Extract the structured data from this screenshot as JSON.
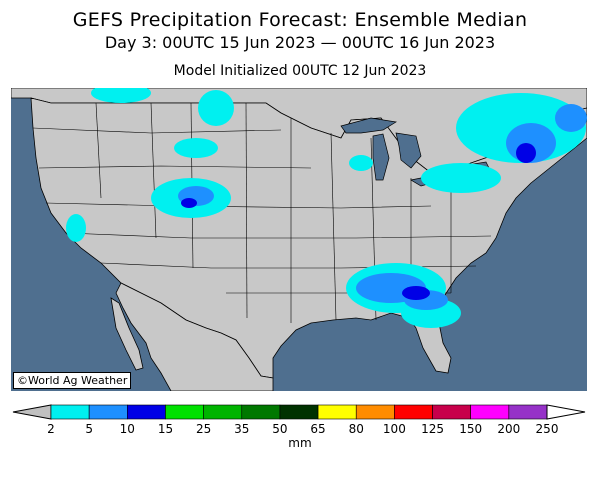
{
  "header": {
    "title": "GEFS Precipitation Forecast: Ensemble Median",
    "subtitle": "Day 3: 00UTC 15 Jun 2023 — 00UTC 16 Jun 2023",
    "init": "Model Initialized 00UTC 12 Jun 2023"
  },
  "map": {
    "credit": "©World Ag Weather",
    "ocean_color": "#4f6f8f",
    "land_color": "#c8c8c8"
  },
  "legend": {
    "unit": "mm",
    "ticks": [
      "2",
      "5",
      "10",
      "15",
      "25",
      "35",
      "50",
      "65",
      "80",
      "100",
      "125",
      "150",
      "200",
      "250"
    ],
    "colors": [
      "#00f0f0",
      "#1e90ff",
      "#0000e6",
      "#00e100",
      "#00b400",
      "#007800",
      "#003200",
      "#ffff00",
      "#ff8c00",
      "#ff0000",
      "#c8004b",
      "#ff00ff",
      "#9632c8"
    ]
  }
}
